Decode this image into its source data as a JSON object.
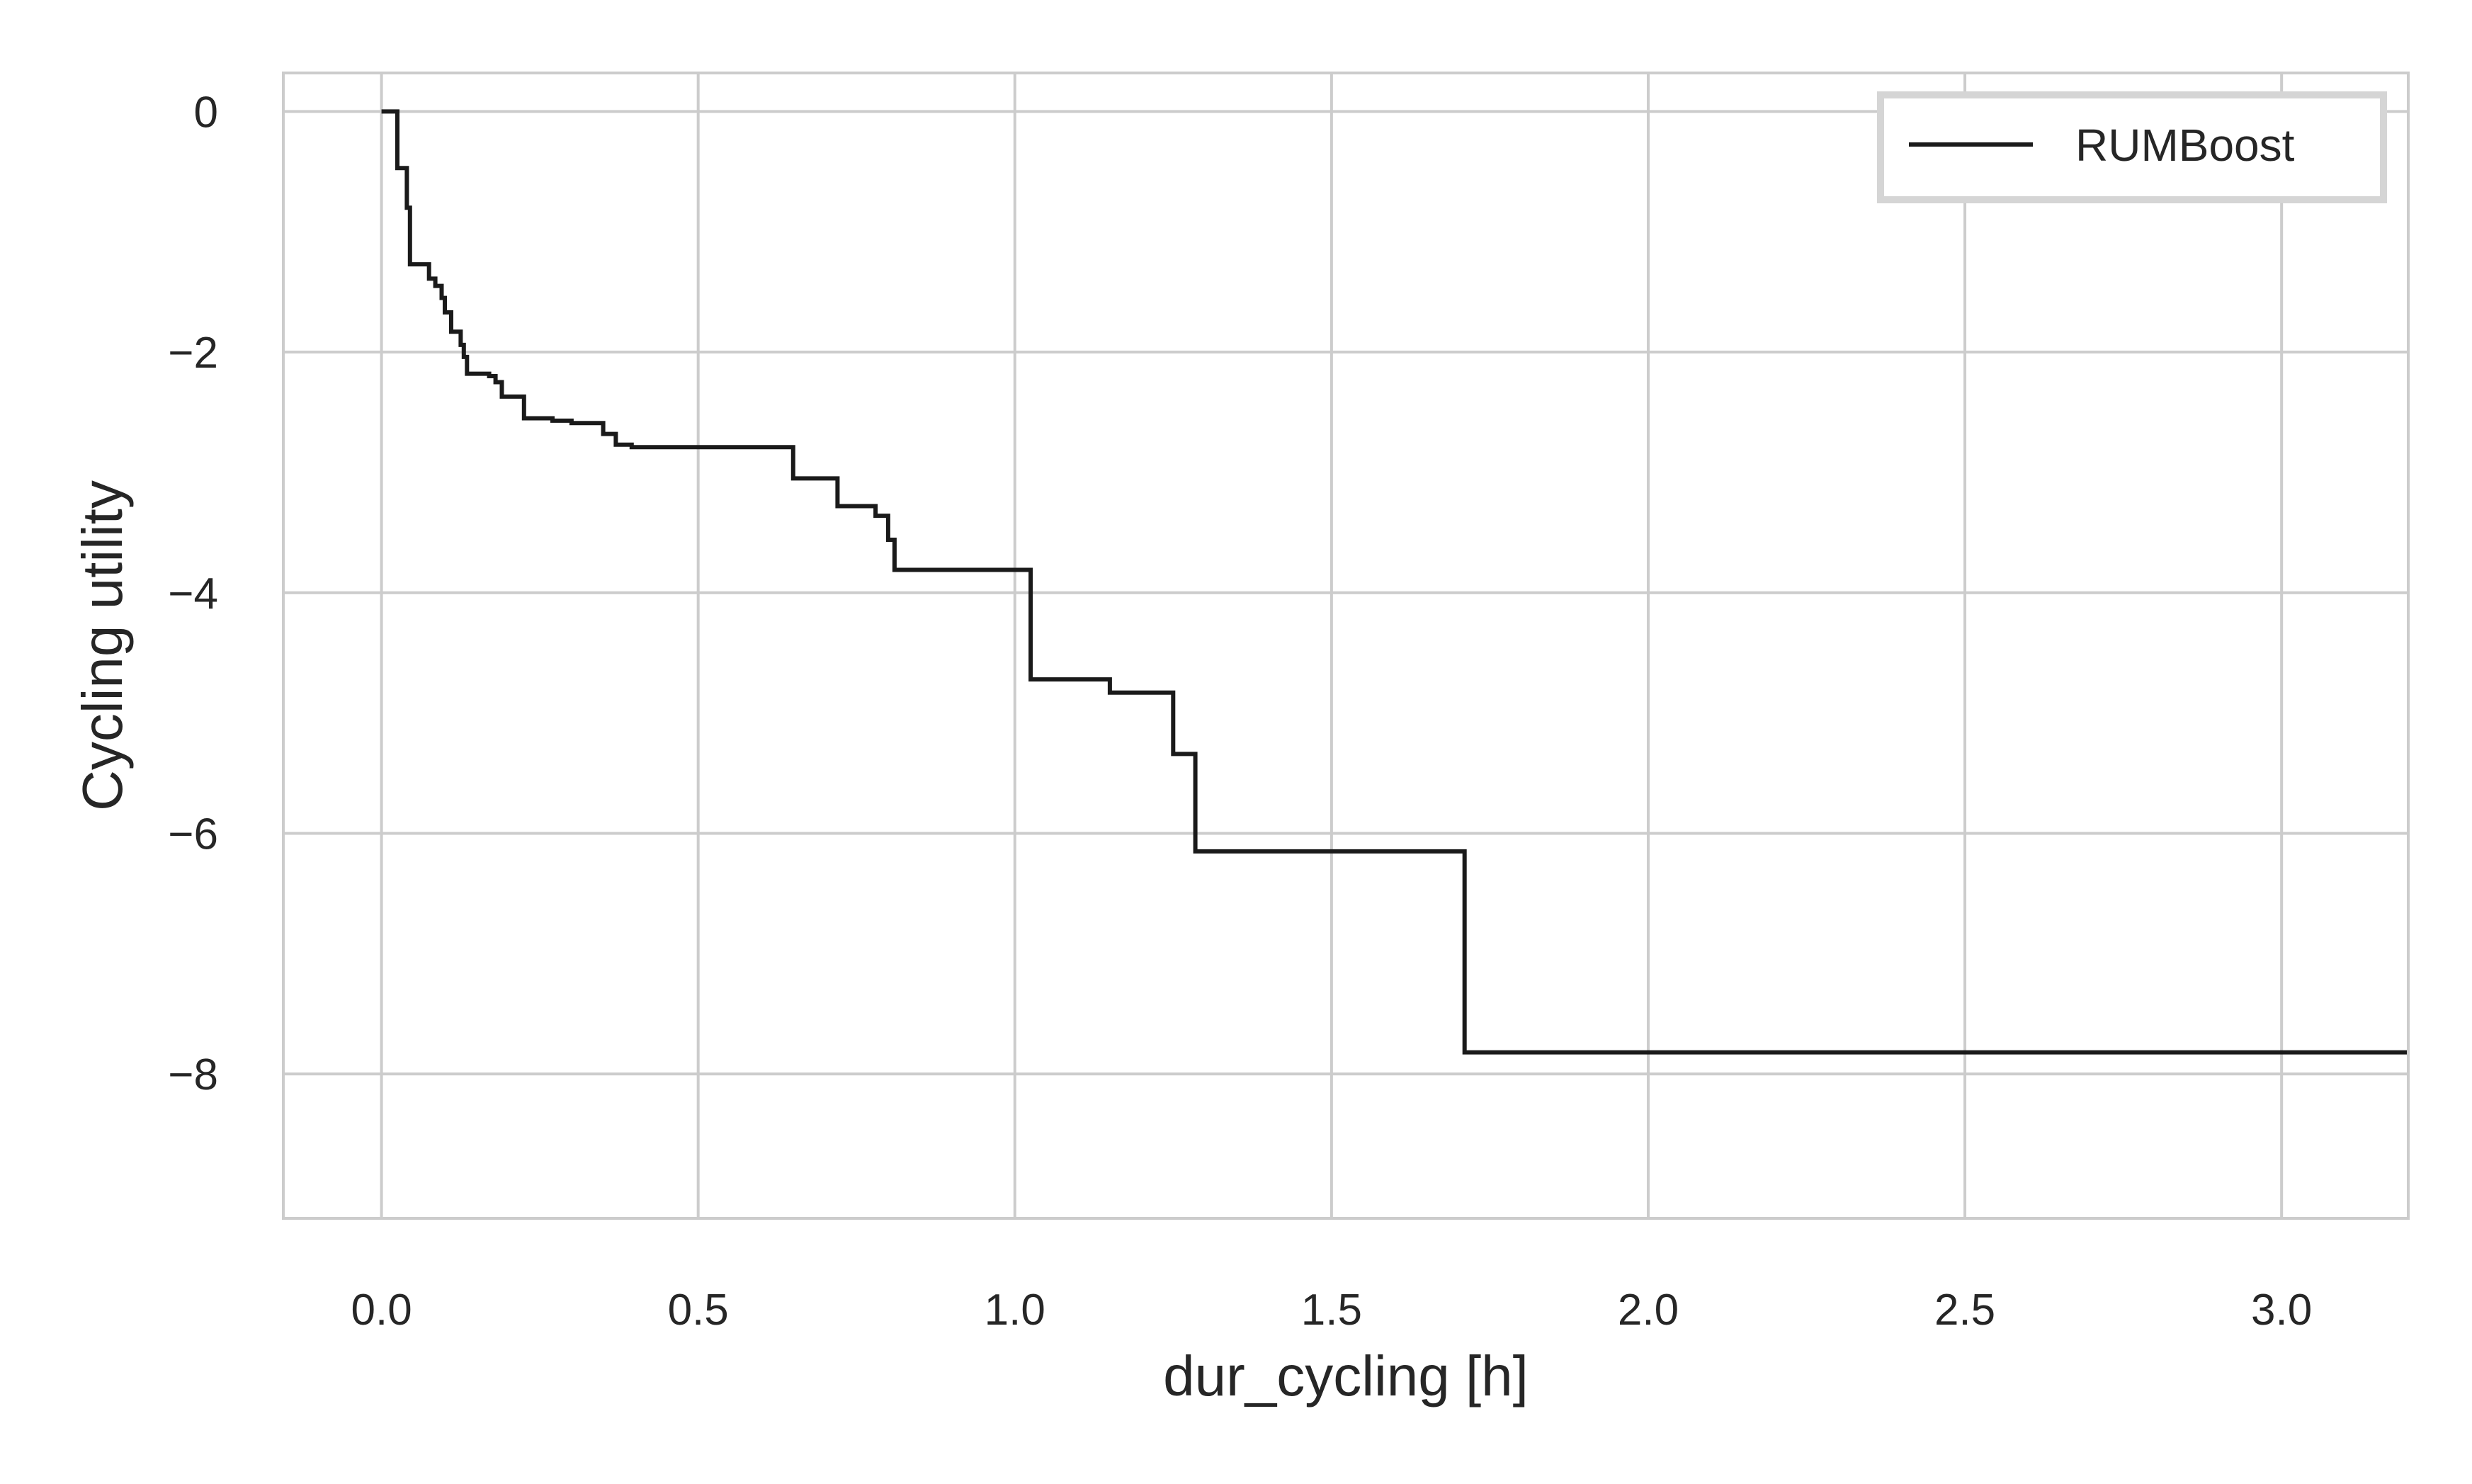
{
  "chart_data": {
    "type": "line",
    "step": true,
    "xlabel": "dur_cycling [h]",
    "ylabel": "Cycling utility",
    "xlim": [
      -0.155,
      3.2
    ],
    "ylim": [
      -9.2,
      0.32
    ],
    "xticks": [
      0.0,
      0.5,
      1.0,
      1.5,
      2.0,
      2.5,
      3.0
    ],
    "xtick_labels": [
      "0.0",
      "0.5",
      "1.0",
      "1.5",
      "2.0",
      "2.5",
      "3.0"
    ],
    "yticks": [
      0,
      -2,
      -4,
      -6,
      -8
    ],
    "ytick_labels": [
      "0",
      "−2",
      "−4",
      "−6",
      "−8"
    ],
    "grid": true,
    "legend_position": "top-right",
    "colors": {
      "line": "#1a1a1a",
      "grid": "#cccccc",
      "frame": "#cccccc",
      "legend_border": "#d5d5d5",
      "text": "#262626"
    },
    "series": [
      {
        "name": "RUMBoost",
        "x": [
          0.0,
          0.025,
          0.04,
          0.045,
          0.05,
          0.075,
          0.085,
          0.095,
          0.1,
          0.11,
          0.125,
          0.13,
          0.135,
          0.17,
          0.18,
          0.19,
          0.225,
          0.27,
          0.3,
          0.35,
          0.37,
          0.395,
          0.42,
          0.65,
          0.72,
          0.78,
          0.8,
          0.81,
          1.025,
          1.15,
          1.25,
          1.285,
          1.71,
          3.2
        ],
        "y": [
          0.0,
          -0.47,
          -0.8,
          -1.27,
          -1.27,
          -1.39,
          -1.45,
          -1.55,
          -1.67,
          -1.83,
          -1.94,
          -2.04,
          -2.18,
          -2.2,
          -2.25,
          -2.37,
          -2.55,
          -2.57,
          -2.59,
          -2.68,
          -2.77,
          -2.79,
          -2.79,
          -3.05,
          -3.28,
          -3.36,
          -3.56,
          -3.81,
          -4.72,
          -4.83,
          -5.34,
          -6.15,
          -7.82,
          -7.82
        ]
      }
    ]
  }
}
